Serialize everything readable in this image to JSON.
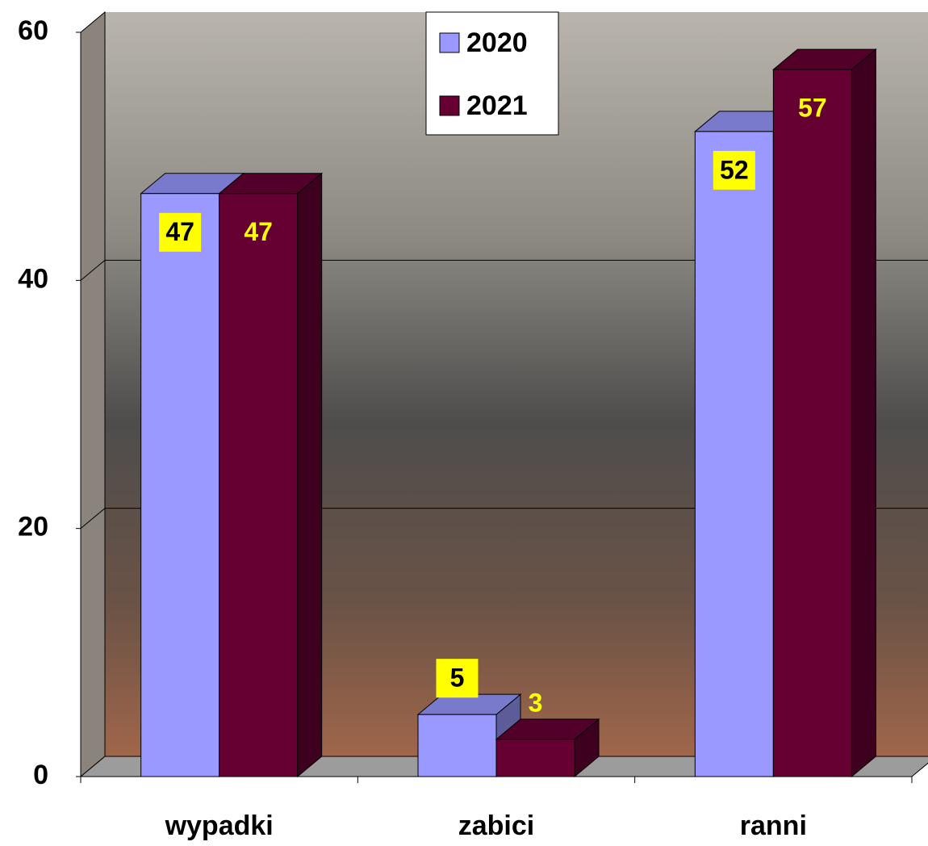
{
  "chart_data": {
    "type": "bar3d",
    "categories": [
      "wypadki",
      "zabici",
      "ranni"
    ],
    "series": [
      {
        "name": "2020",
        "color": "#9999ff",
        "values": [
          47,
          5,
          52
        ]
      },
      {
        "name": "2021",
        "color": "#660033",
        "values": [
          47,
          3,
          57
        ]
      }
    ],
    "ylim": [
      0,
      60
    ],
    "yticks": [
      0,
      20,
      40,
      60
    ],
    "grid": true,
    "legend": "top-center"
  }
}
